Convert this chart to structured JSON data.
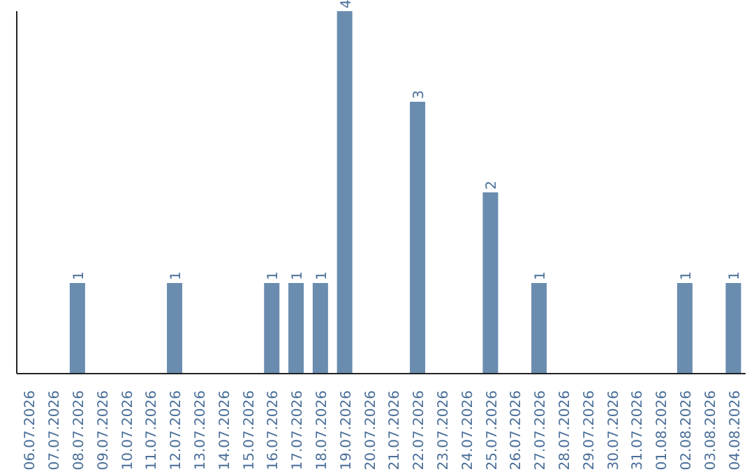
{
  "chart_data": {
    "type": "bar",
    "categories": [
      "06.07.2026",
      "07.07.2026",
      "08.07.2026",
      "09.07.2026",
      "10.07.2026",
      "11.07.2026",
      "12.07.2026",
      "13.07.2026",
      "14.07.2026",
      "15.07.2026",
      "16.07.2026",
      "17.07.2026",
      "18.07.2026",
      "19.07.2026",
      "20.07.2026",
      "21.07.2026",
      "22.07.2026",
      "23.07.2026",
      "24.07.2026",
      "25.07.2026",
      "26.07.2026",
      "27.07.2026",
      "28.07.2026",
      "29.07.2026",
      "30.07.2026",
      "31.07.2026",
      "01.08.2026",
      "02.08.2026",
      "03.08.2026",
      "04.08.2026"
    ],
    "values": [
      0,
      0,
      1,
      0,
      0,
      0,
      1,
      0,
      0,
      0,
      1,
      1,
      1,
      4,
      0,
      0,
      3,
      0,
      0,
      2,
      0,
      1,
      0,
      0,
      0,
      0,
      0,
      1,
      0,
      1
    ],
    "value_labels": [
      null,
      null,
      "1",
      null,
      null,
      null,
      "1",
      null,
      null,
      null,
      "1",
      "1",
      "1",
      "4",
      null,
      null,
      "3",
      null,
      null,
      "2",
      null,
      "1",
      null,
      null,
      null,
      null,
      null,
      "1",
      null,
      "1"
    ],
    "color": "#6a8caf",
    "tick_labels": "x"
  }
}
